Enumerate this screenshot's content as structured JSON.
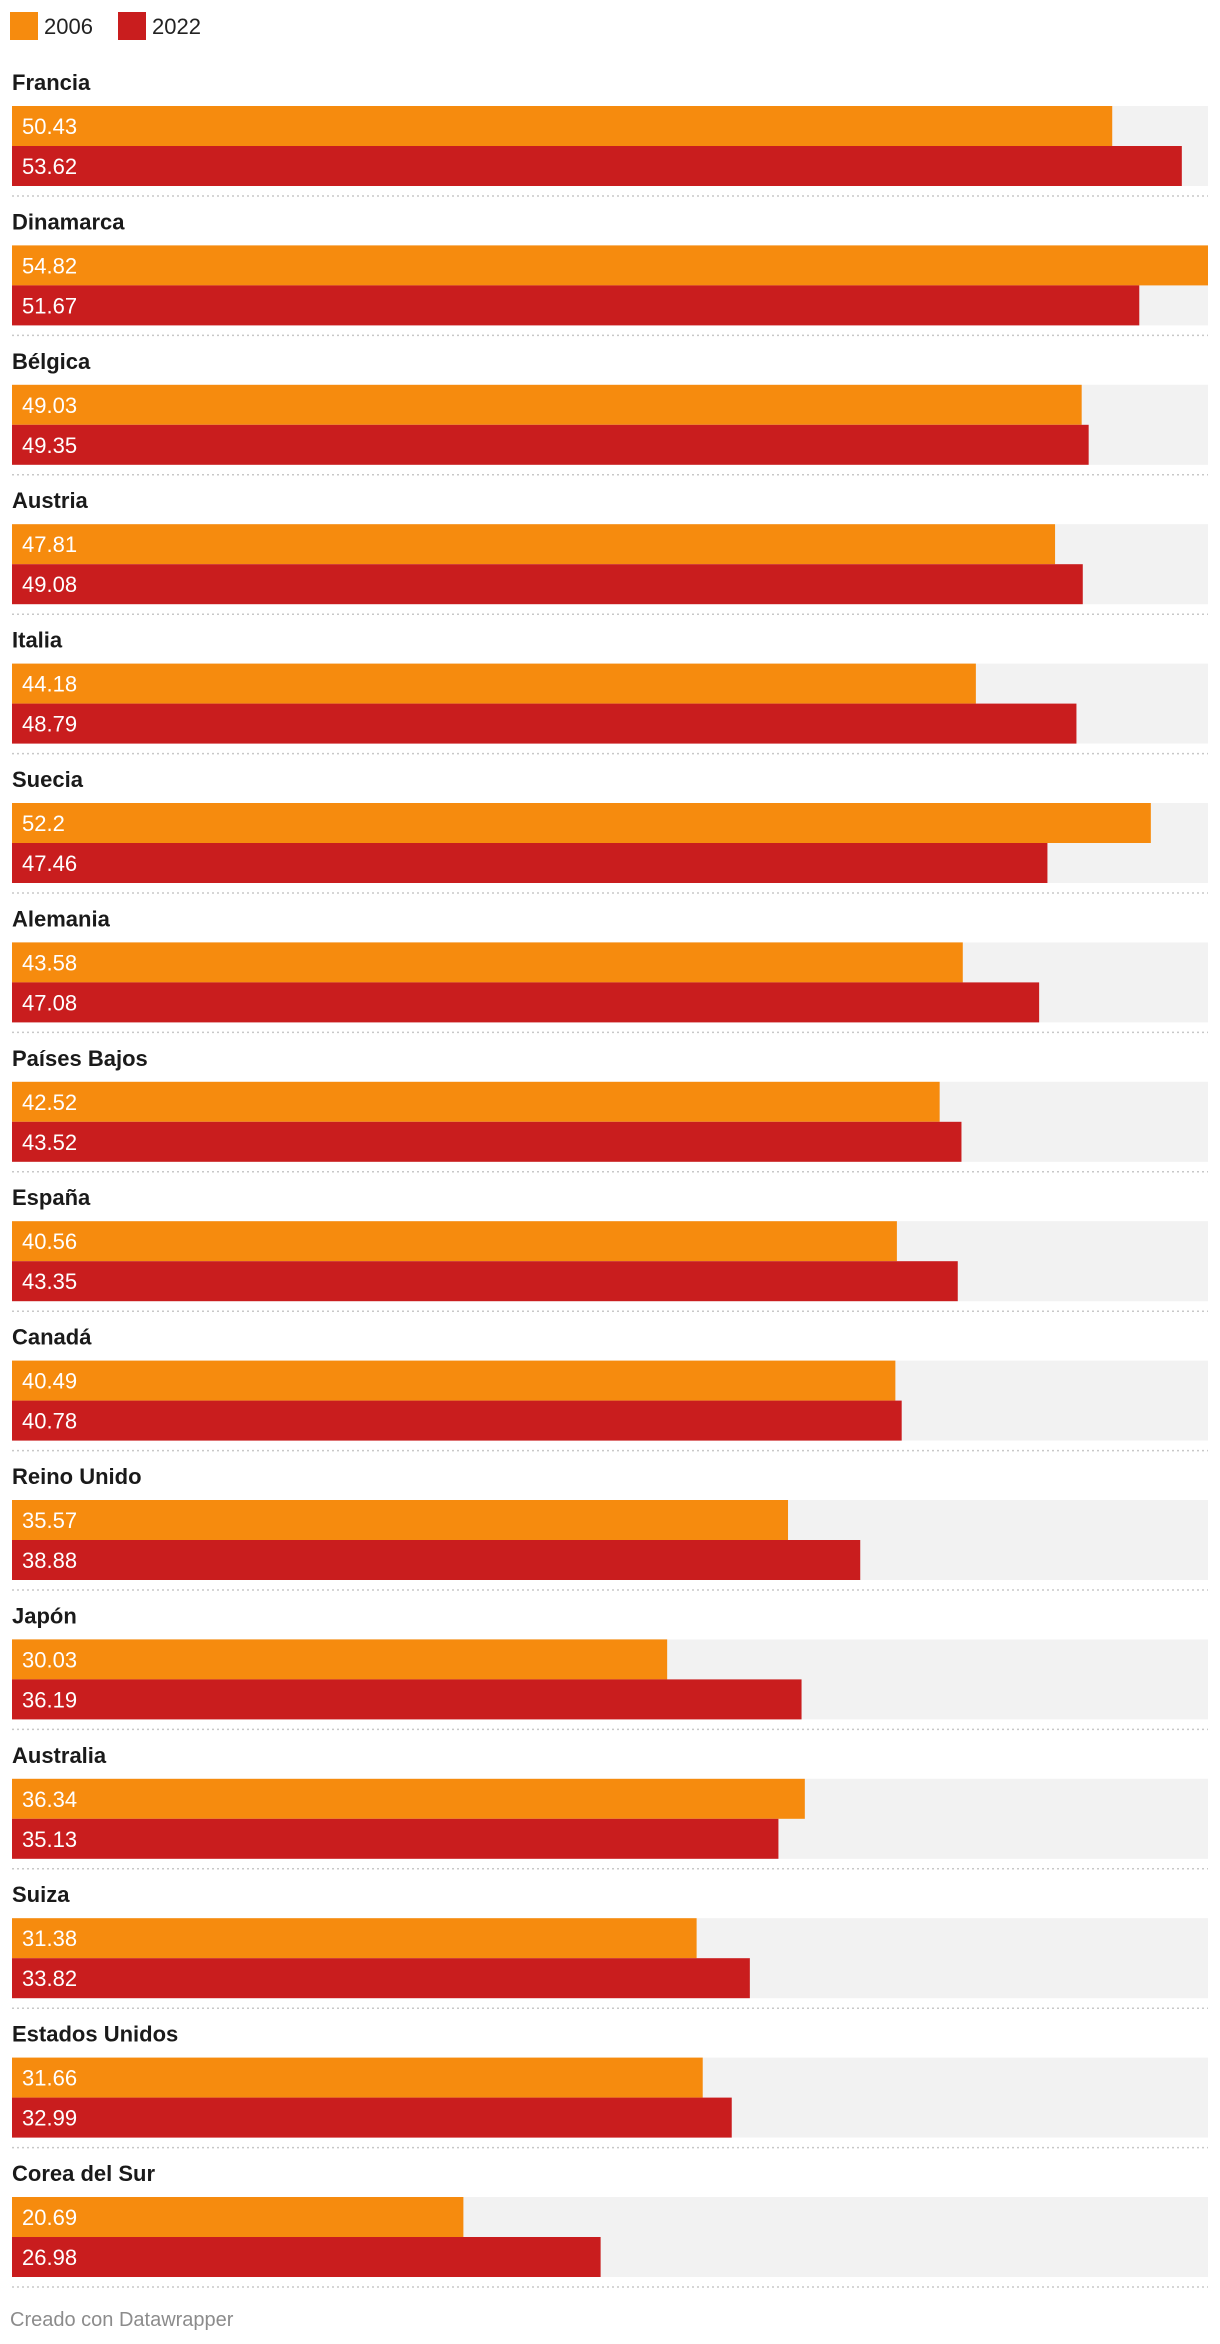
{
  "chart_data": {
    "type": "bar",
    "orientation": "horizontal",
    "grouped": true,
    "xlim": [
      0,
      54.82
    ],
    "grid": false,
    "legend_position": "top-left",
    "categories": [
      "Francia",
      "Dinamarca",
      "Bélgica",
      "Austria",
      "Italia",
      "Suecia",
      "Alemania",
      "Países Bajos",
      "España",
      "Canadá",
      "Reino Unido",
      "Japón",
      "Australia",
      "Suiza",
      "Estados Unidos",
      "Corea del Sur"
    ],
    "series": [
      {
        "name": "2006",
        "color": "#f68b0e",
        "values": [
          50.43,
          54.82,
          49.03,
          47.81,
          44.18,
          52.2,
          43.58,
          42.52,
          40.56,
          40.49,
          35.57,
          30.03,
          36.34,
          31.38,
          31.66,
          20.69
        ]
      },
      {
        "name": "2022",
        "color": "#c91d1e",
        "values": [
          53.62,
          51.67,
          49.35,
          49.08,
          48.79,
          47.46,
          47.08,
          43.52,
          43.35,
          40.78,
          38.88,
          36.19,
          35.13,
          33.82,
          32.99,
          26.98
        ]
      }
    ],
    "background_bar_color": "#f2f2f2",
    "credit": "Creado con Datawrapper"
  }
}
